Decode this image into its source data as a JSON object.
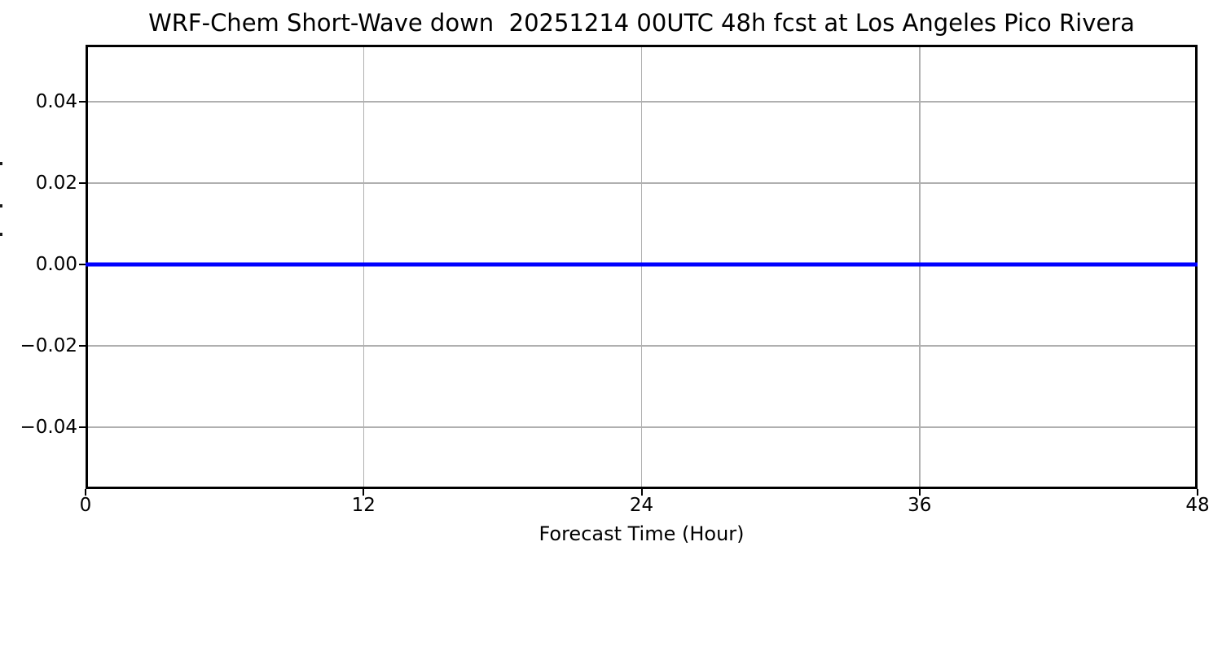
{
  "title": "WRF-Chem Short-Wave down  20251214 00UTC 48h fcst at Los Angeles Pico Rivera",
  "colors": {
    "line": "#0000ff",
    "grid": "#b0b0b0",
    "axis": "#000000",
    "background": "#ffffff"
  },
  "chart_data": {
    "type": "line",
    "title": "WRF-Chem Short-Wave down  20251214 00UTC 48h fcst at Los Angeles Pico Rivera",
    "xlabel": "Forecast Time (Hour)",
    "ylabel": "",
    "xlim": [
      0,
      48
    ],
    "ylim": [
      -0.0552,
      0.054
    ],
    "grid": true,
    "legend": "none",
    "xticks": [
      {
        "value": 0,
        "label": "0"
      },
      {
        "value": 12,
        "label": "12"
      },
      {
        "value": 24,
        "label": "24"
      },
      {
        "value": 36,
        "label": "36"
      },
      {
        "value": 48,
        "label": "48"
      }
    ],
    "yticks": [
      {
        "value": 0.04,
        "label": "0.04"
      },
      {
        "value": 0.02,
        "label": "0.02"
      },
      {
        "value": 0.0,
        "label": "0.00"
      },
      {
        "value": -0.02,
        "label": "−0.02"
      },
      {
        "value": -0.04,
        "label": "−0.04"
      }
    ],
    "x": [
      0,
      1,
      2,
      3,
      4,
      5,
      6,
      7,
      8,
      9,
      10,
      11,
      12,
      13,
      14,
      15,
      16,
      17,
      18,
      19,
      20,
      21,
      22,
      23,
      24,
      25,
      26,
      27,
      28,
      29,
      30,
      31,
      32,
      33,
      34,
      35,
      36,
      37,
      38,
      39,
      40,
      41,
      42,
      43,
      44,
      45,
      46,
      47,
      48
    ],
    "series": [
      {
        "name": "Short-Wave down",
        "color": "#0000ff",
        "line_width": 5,
        "values": [
          0,
          0,
          0,
          0,
          0,
          0,
          0,
          0,
          0,
          0,
          0,
          0,
          0,
          0,
          0,
          0,
          0,
          0,
          0,
          0,
          0,
          0,
          0,
          0,
          0,
          0,
          0,
          0,
          0,
          0,
          0,
          0,
          0,
          0,
          0,
          0,
          0,
          0,
          0,
          0,
          0,
          0,
          0,
          0,
          0,
          0,
          0,
          0,
          0
        ]
      }
    ]
  }
}
